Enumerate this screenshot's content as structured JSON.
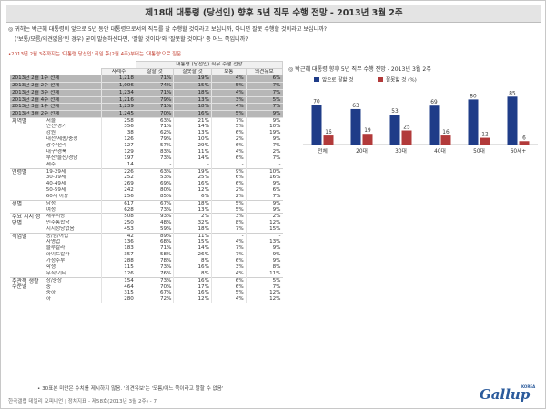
{
  "title": "제18대 대통령 (당선인) 향후 5년 직무 수행 전망 - 2013년 3월 2주",
  "question": {
    "line1": "◎ 귀하는 박근혜 대통령이 앞으로 5년 동안 대통령으로서의 직무를 잘 수행할 것이라고 보십니까, 아니면 잘못 수행할 것이라고 보십니까?",
    "line2": "('보통/모름/의견없음'인 경우) 굳이 말씀하신다면, '잘할 것이다'와 '잘못할 것이다' 중 어느 쪽입니까?"
  },
  "note_top": "•2013년 2월 3주까지는 '대통령 당선인' 취임 후(2월 4주)부터는 '대통령'으로 질문",
  "table": {
    "header_group": "대통령 (당선인) 직무 수행 전망",
    "col_headers": [
      "사례수",
      "잘할 것",
      "잘못할 것",
      "보통",
      "의견유보"
    ],
    "trend": [
      [
        "2013년 2월 1주 전체",
        "1,218",
        "71%",
        "19%",
        "4%",
        "6%"
      ],
      [
        "2013년 2월 2주 전체",
        "1,006",
        "74%",
        "15%",
        "5%",
        "7%"
      ],
      [
        "2013년 2월 3주 전체",
        "1,234",
        "71%",
        "18%",
        "4%",
        "7%"
      ],
      [
        "2013년 2월 4주 전체",
        "1,216",
        "79%",
        "13%",
        "3%",
        "5%"
      ],
      [
        "2013년 3월 1주 전체",
        "1,239",
        "71%",
        "18%",
        "4%",
        "7%"
      ],
      [
        "2013년 3월 2주 전체",
        "1,245",
        "70%",
        "16%",
        "5%",
        "9%"
      ]
    ],
    "groups": [
      {
        "name": "지역별",
        "rows": [
          [
            "서울",
            "258",
            "63%",
            "21%",
            "7%",
            "9%"
          ],
          [
            "인천/경기",
            "356",
            "71%",
            "14%",
            "5%",
            "10%"
          ],
          [
            "강원",
            "38",
            "62%",
            "13%",
            "6%",
            "19%"
          ],
          [
            "대전/세종/충청",
            "126",
            "79%",
            "10%",
            "2%",
            "9%"
          ],
          [
            "광주/전라",
            "127",
            "57%",
            "29%",
            "6%",
            "7%"
          ],
          [
            "대구/경북",
            "129",
            "83%",
            "11%",
            "4%",
            "2%"
          ],
          [
            "부산/울산/경남",
            "197",
            "73%",
            "14%",
            "6%",
            "7%"
          ],
          [
            "제주",
            "14",
            "-",
            "-",
            "-",
            "-"
          ]
        ]
      },
      {
        "name": "연령별",
        "rows": [
          [
            "19-29세",
            "226",
            "63%",
            "19%",
            "9%",
            "10%"
          ],
          [
            "30-39세",
            "252",
            "53%",
            "25%",
            "6%",
            "16%"
          ],
          [
            "40-49세",
            "269",
            "69%",
            "16%",
            "6%",
            "9%"
          ],
          [
            "50-59세",
            "242",
            "80%",
            "12%",
            "2%",
            "6%"
          ],
          [
            "60세 이상",
            "256",
            "85%",
            "6%",
            "2%",
            "7%"
          ]
        ]
      },
      {
        "name": "성별",
        "rows": [
          [
            "남성",
            "617",
            "67%",
            "18%",
            "5%",
            "9%"
          ],
          [
            "여성",
            "628",
            "73%",
            "13%",
            "5%",
            "9%"
          ]
        ]
      },
      {
        "name": "주요 지지 정당별",
        "rows": [
          [
            "새누리당",
            "508",
            "93%",
            "2%",
            "3%",
            "2%"
          ],
          [
            "민주통합당",
            "250",
            "48%",
            "32%",
            "8%",
            "12%"
          ],
          [
            "지지정당없음",
            "453",
            "59%",
            "18%",
            "7%",
            "15%"
          ]
        ]
      },
      {
        "name": "직업별",
        "rows": [
          [
            "농/임/어업",
            "42",
            "89%",
            "11%",
            "-",
            "-"
          ],
          [
            "자영업",
            "136",
            "68%",
            "15%",
            "4%",
            "13%"
          ],
          [
            "블루칼라",
            "183",
            "71%",
            "14%",
            "7%",
            "9%"
          ],
          [
            "화이트칼라",
            "357",
            "58%",
            "26%",
            "7%",
            "9%"
          ],
          [
            "가정주부",
            "288",
            "78%",
            "8%",
            "6%",
            "9%"
          ],
          [
            "학생",
            "115",
            "73%",
            "16%",
            "3%",
            "8%"
          ],
          [
            "무직/기타",
            "126",
            "76%",
            "8%",
            "4%",
            "11%"
          ]
        ]
      },
      {
        "name": "주관적 생활수준별",
        "rows": [
          [
            "상/중상",
            "154",
            "73%",
            "16%",
            "6%",
            "5%"
          ],
          [
            "중",
            "464",
            "70%",
            "17%",
            "6%",
            "7%"
          ],
          [
            "중하",
            "315",
            "67%",
            "16%",
            "5%",
            "12%"
          ],
          [
            "하",
            "280",
            "72%",
            "12%",
            "4%",
            "12%"
          ]
        ]
      }
    ]
  },
  "bottom_note": "• 30표본 미만은 수치를 제시하지 않음. '의견유보'는 '모름/어느 쪽이라고 말할 수 없음'",
  "footer": "한국갤럽 데일리 오피니언 | 정치지표 - 제58호(2013년 3월 2주) - 7",
  "logo": {
    "text": "Gallup",
    "sub": "KOREA"
  },
  "colors": {
    "good": "#1f3c88",
    "bad": "#b23a3a",
    "trend_bg": "#b7b7b7"
  },
  "chart_data": {
    "type": "bar",
    "title": "◎ 박근혜 대통령 향후 5년 직무 수행 전망 - 2013년 3월 2주",
    "categories": [
      "전체",
      "20대",
      "30대",
      "40대",
      "50대",
      "60세+"
    ],
    "series": [
      {
        "name": "앞으로 잘할 것",
        "values": [
          70,
          63,
          53,
          69,
          80,
          85
        ]
      },
      {
        "name": "잘못할 것 (%)",
        "values": [
          16,
          19,
          25,
          16,
          12,
          6
        ]
      }
    ],
    "ylim": [
      0,
      100
    ],
    "grid": false,
    "legend": "top-left"
  }
}
